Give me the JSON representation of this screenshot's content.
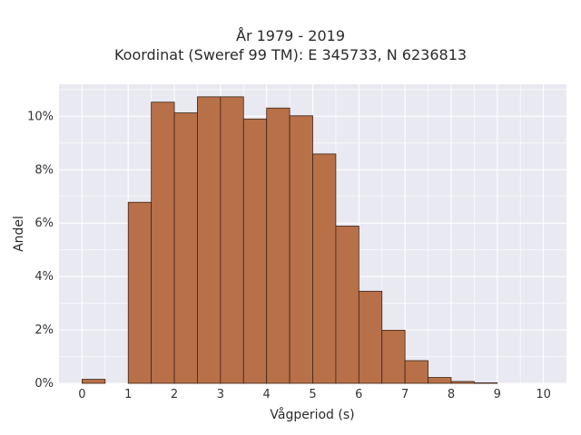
{
  "chart_data": {
    "type": "bar",
    "title": "År 1979 - 2019",
    "subtitle": "Koordinat (Sweref 99 TM): E 345733, N 6236813",
    "xlabel": "Vågperiod (s)",
    "ylabel": "Andel",
    "xlim": [
      -0.5,
      10.5
    ],
    "ylim": [
      0,
      0.112
    ],
    "x_ticks": [
      0,
      1,
      2,
      3,
      4,
      5,
      6,
      7,
      8,
      9,
      10
    ],
    "y_ticks": [
      0,
      0.02,
      0.04,
      0.06,
      0.08,
      0.1
    ],
    "y_tick_labels": [
      "0%",
      "2%",
      "4%",
      "6%",
      "8%",
      "10%"
    ],
    "bin_width": 0.5,
    "bins": [
      {
        "x0": 0.0,
        "value": 0.0015
      },
      {
        "x0": 0.5,
        "value": 0.0
      },
      {
        "x0": 1.0,
        "value": 0.0678
      },
      {
        "x0": 1.5,
        "value": 0.1053
      },
      {
        "x0": 2.0,
        "value": 0.1013
      },
      {
        "x0": 2.5,
        "value": 0.1073
      },
      {
        "x0": 3.0,
        "value": 0.1073
      },
      {
        "x0": 3.5,
        "value": 0.099
      },
      {
        "x0": 4.0,
        "value": 0.1031
      },
      {
        "x0": 4.5,
        "value": 0.1002
      },
      {
        "x0": 5.0,
        "value": 0.0859
      },
      {
        "x0": 5.5,
        "value": 0.0589
      },
      {
        "x0": 6.0,
        "value": 0.0345
      },
      {
        "x0": 6.5,
        "value": 0.0199
      },
      {
        "x0": 7.0,
        "value": 0.0085
      },
      {
        "x0": 7.5,
        "value": 0.0022
      },
      {
        "x0": 8.0,
        "value": 0.0007
      },
      {
        "x0": 8.5,
        "value": 0.0002
      }
    ],
    "grid": true,
    "colors": {
      "bar": "#b87048",
      "bar_edge": "#3c2518",
      "plot_bg": "#e9e9f1",
      "grid": "#ffffff"
    }
  }
}
